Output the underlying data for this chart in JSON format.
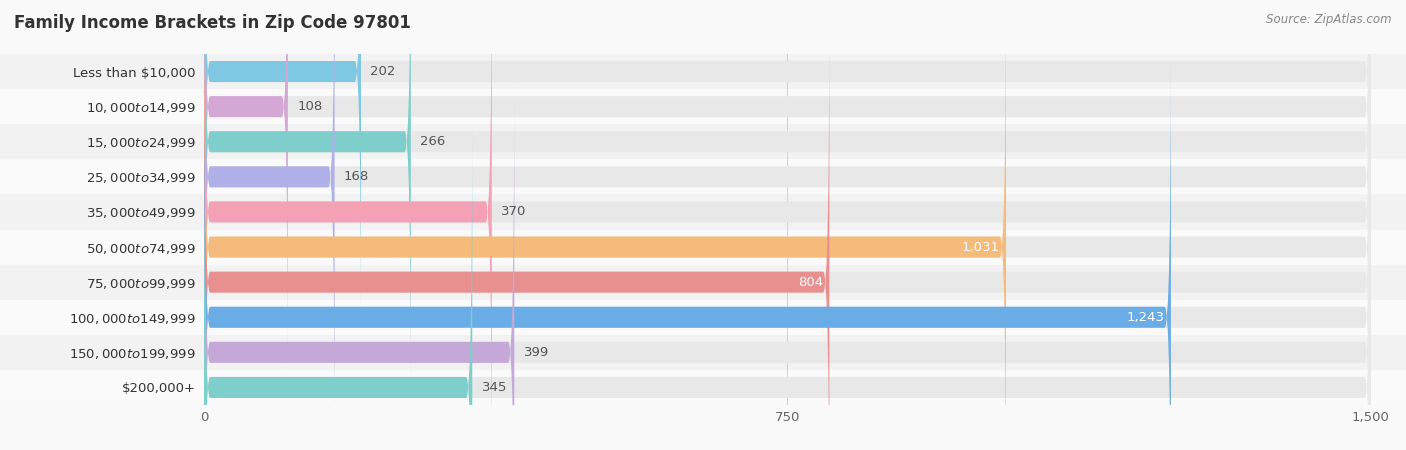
{
  "title": "Family Income Brackets in Zip Code 97801",
  "source": "Source: ZipAtlas.com",
  "categories": [
    "Less than $10,000",
    "$10,000 to $14,999",
    "$15,000 to $24,999",
    "$25,000 to $34,999",
    "$35,000 to $49,999",
    "$50,000 to $74,999",
    "$75,000 to $99,999",
    "$100,000 to $149,999",
    "$150,000 to $199,999",
    "$200,000+"
  ],
  "values": [
    202,
    108,
    266,
    168,
    370,
    1031,
    804,
    1243,
    399,
    345
  ],
  "bar_colors": [
    "#7ec8e3",
    "#d4a8d4",
    "#7ecfcb",
    "#b0b0e8",
    "#f4a0b5",
    "#f5bb7a",
    "#e89090",
    "#6aace6",
    "#c4a8d8",
    "#7ecfcb"
  ],
  "xlim": [
    0,
    1500
  ],
  "xticks": [
    0,
    750,
    1500
  ],
  "background_color": "#f9f9f9",
  "row_bg_even": "#f2f2f2",
  "row_bg_odd": "#fafafa",
  "bar_bg_color": "#e8e8e8",
  "title_fontsize": 12,
  "label_fontsize": 9.5,
  "value_fontsize": 9.5
}
